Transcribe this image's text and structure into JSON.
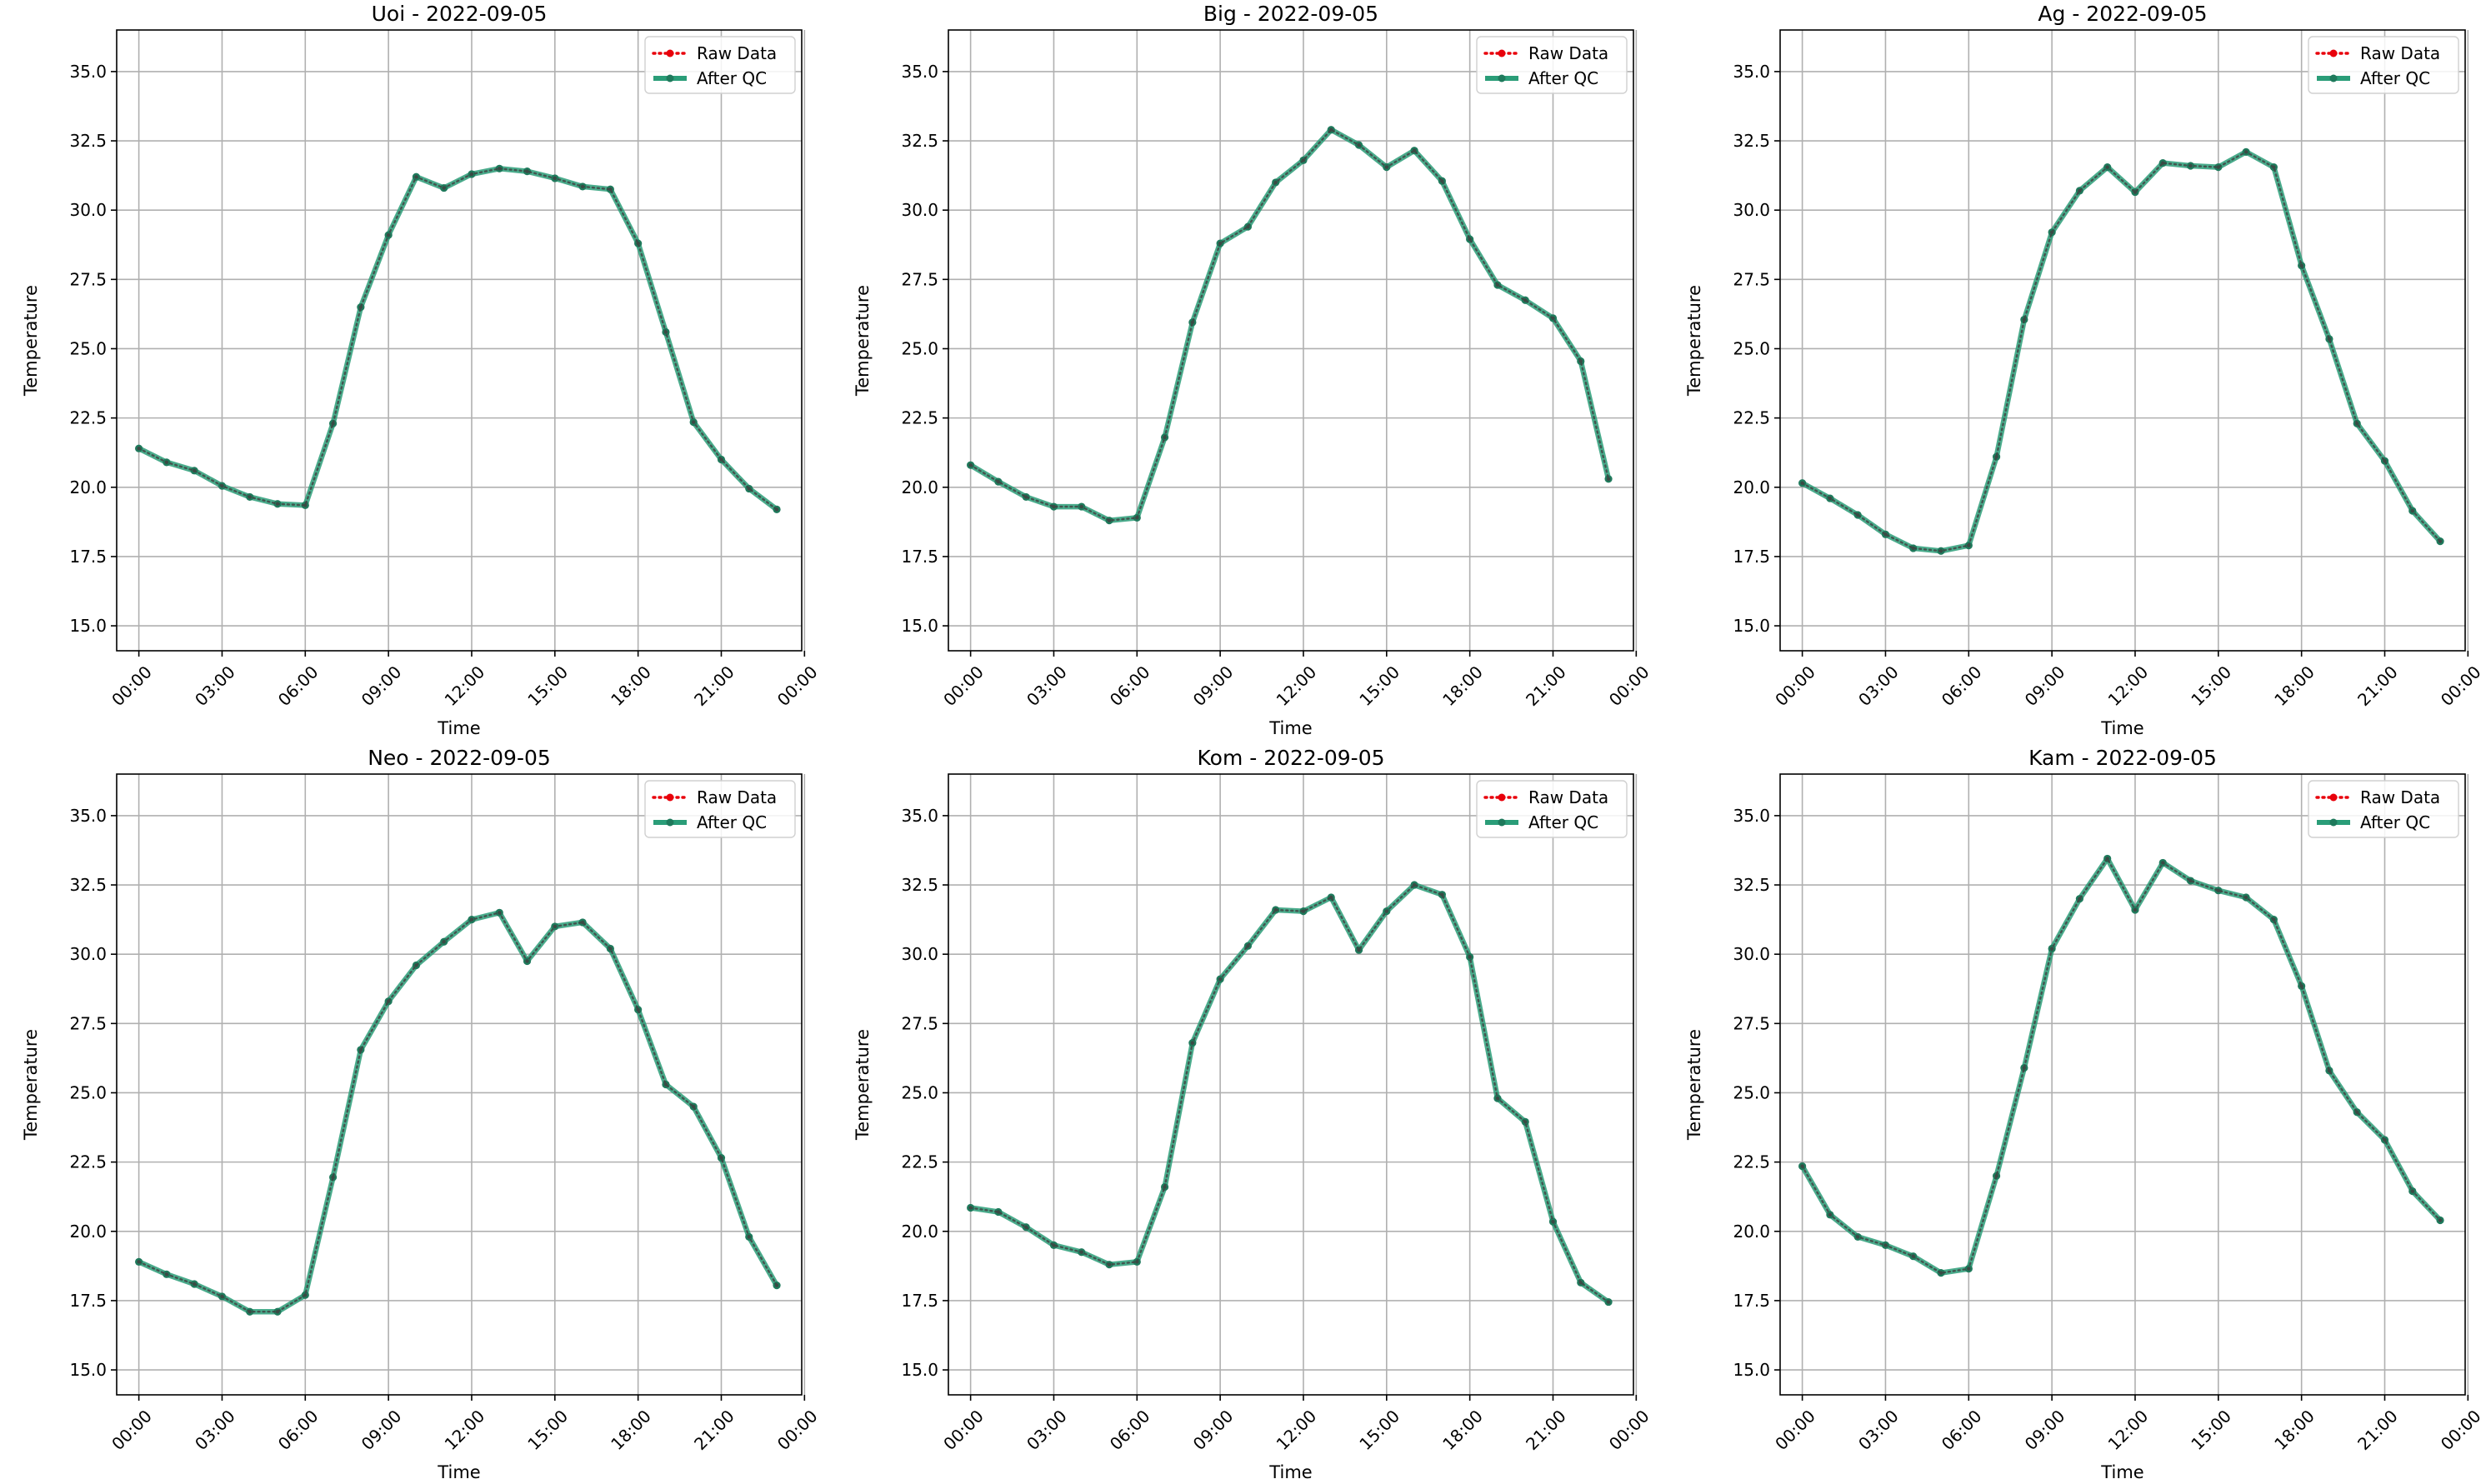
{
  "colors": {
    "raw": "#e8000b",
    "after_qc": "#2a9d78",
    "after_qc_marker": "#1f7a5c",
    "grid": "#b0b0b0",
    "axes": "#000000"
  },
  "chart_data": [
    {
      "type": "line",
      "title": "Uoi - 2022-09-05",
      "xlabel": "Time",
      "ylabel": "Temperature",
      "x_ticks": [
        "00:00",
        "03:00",
        "06:00",
        "09:00",
        "12:00",
        "15:00",
        "18:00",
        "21:00",
        "00:00"
      ],
      "y_ticks": [
        "15.0",
        "17.5",
        "20.0",
        "22.5",
        "25.0",
        "27.5",
        "30.0",
        "32.5",
        "35.0"
      ],
      "xlim_hours": [
        -0.8,
        23.9
      ],
      "ylim": [
        14.1,
        36.5
      ],
      "grid": true,
      "legend_position": "top-right",
      "x_hours": [
        0,
        1,
        2,
        3,
        4,
        5,
        6,
        7,
        8,
        9,
        10,
        11,
        12,
        13,
        14,
        15,
        16,
        17,
        18,
        19,
        20,
        21,
        22,
        23
      ],
      "series": [
        {
          "name": "Raw Data",
          "values": [
            21.4,
            20.9,
            20.6,
            20.05,
            19.65,
            19.4,
            19.35,
            22.3,
            26.5,
            29.1,
            31.2,
            30.8,
            31.3,
            31.5,
            31.4,
            31.15,
            30.85,
            30.75,
            28.8,
            25.6,
            22.35,
            21.0,
            19.95,
            19.2
          ]
        },
        {
          "name": "After QC",
          "values": [
            21.4,
            20.9,
            20.6,
            20.05,
            19.65,
            19.4,
            19.35,
            22.3,
            26.5,
            29.1,
            31.2,
            30.8,
            31.3,
            31.5,
            31.4,
            31.15,
            30.85,
            30.75,
            28.8,
            25.6,
            22.35,
            21.0,
            19.95,
            19.2
          ]
        }
      ]
    },
    {
      "type": "line",
      "title": "Big - 2022-09-05",
      "xlabel": "Time",
      "ylabel": "Temperature",
      "x_ticks": [
        "00:00",
        "03:00",
        "06:00",
        "09:00",
        "12:00",
        "15:00",
        "18:00",
        "21:00",
        "00:00"
      ],
      "y_ticks": [
        "15.0",
        "17.5",
        "20.0",
        "22.5",
        "25.0",
        "27.5",
        "30.0",
        "32.5",
        "35.0"
      ],
      "xlim_hours": [
        -0.8,
        23.9
      ],
      "ylim": [
        14.1,
        36.5
      ],
      "grid": true,
      "legend_position": "top-right",
      "x_hours": [
        0,
        1,
        2,
        3,
        4,
        5,
        6,
        7,
        8,
        9,
        10,
        11,
        12,
        13,
        14,
        15,
        16,
        17,
        18,
        19,
        20,
        21,
        22,
        23
      ],
      "series": [
        {
          "name": "Raw Data",
          "values": [
            20.8,
            20.2,
            19.65,
            19.3,
            19.3,
            18.8,
            18.9,
            21.8,
            25.95,
            28.8,
            29.4,
            31.0,
            31.8,
            32.9,
            32.35,
            31.55,
            32.15,
            31.05,
            28.95,
            27.3,
            26.75,
            26.1,
            24.55,
            20.3
          ]
        },
        {
          "name": "After QC",
          "values": [
            20.8,
            20.2,
            19.65,
            19.3,
            19.3,
            18.8,
            18.9,
            21.8,
            25.95,
            28.8,
            29.4,
            31.0,
            31.8,
            32.9,
            32.35,
            31.55,
            32.15,
            31.05,
            28.95,
            27.3,
            26.75,
            26.1,
            24.55,
            20.3
          ]
        }
      ]
    },
    {
      "type": "line",
      "title": "Ag - 2022-09-05",
      "xlabel": "Time",
      "ylabel": "Temperature",
      "x_ticks": [
        "00:00",
        "03:00",
        "06:00",
        "09:00",
        "12:00",
        "15:00",
        "18:00",
        "21:00",
        "00:00"
      ],
      "y_ticks": [
        "15.0",
        "17.5",
        "20.0",
        "22.5",
        "25.0",
        "27.5",
        "30.0",
        "32.5",
        "35.0"
      ],
      "xlim_hours": [
        -0.8,
        23.9
      ],
      "ylim": [
        14.1,
        36.5
      ],
      "grid": true,
      "legend_position": "top-right",
      "x_hours": [
        0,
        1,
        2,
        3,
        4,
        5,
        6,
        7,
        8,
        9,
        10,
        11,
        12,
        13,
        14,
        15,
        16,
        17,
        18,
        19,
        20,
        21,
        22,
        23
      ],
      "series": [
        {
          "name": "Raw Data",
          "values": [
            20.15,
            19.6,
            19.0,
            18.3,
            17.8,
            17.7,
            17.9,
            21.1,
            26.05,
            29.2,
            30.7,
            31.55,
            30.65,
            31.7,
            31.6,
            31.55,
            32.1,
            31.55,
            28.0,
            25.35,
            22.3,
            20.95,
            19.15,
            18.05
          ]
        },
        {
          "name": "After QC",
          "values": [
            20.15,
            19.6,
            19.0,
            18.3,
            17.8,
            17.7,
            17.9,
            21.1,
            26.05,
            29.2,
            30.7,
            31.55,
            30.65,
            31.7,
            31.6,
            31.55,
            32.1,
            31.55,
            28.0,
            25.35,
            22.3,
            20.95,
            19.15,
            18.05
          ]
        }
      ]
    },
    {
      "type": "line",
      "title": "Neo - 2022-09-05",
      "xlabel": "Time",
      "ylabel": "Temperature",
      "x_ticks": [
        "00:00",
        "03:00",
        "06:00",
        "09:00",
        "12:00",
        "15:00",
        "18:00",
        "21:00",
        "00:00"
      ],
      "y_ticks": [
        "15.0",
        "17.5",
        "20.0",
        "22.5",
        "25.0",
        "27.5",
        "30.0",
        "32.5",
        "35.0"
      ],
      "xlim_hours": [
        -0.8,
        23.9
      ],
      "ylim": [
        14.1,
        36.5
      ],
      "grid": true,
      "legend_position": "top-right",
      "x_hours": [
        0,
        1,
        2,
        3,
        4,
        5,
        6,
        7,
        8,
        9,
        10,
        11,
        12,
        13,
        14,
        15,
        16,
        17,
        18,
        19,
        20,
        21,
        22,
        23
      ],
      "series": [
        {
          "name": "Raw Data",
          "values": [
            18.9,
            18.45,
            18.1,
            17.65,
            17.1,
            17.1,
            17.7,
            21.95,
            26.55,
            28.3,
            29.6,
            30.45,
            31.25,
            31.5,
            29.75,
            31.0,
            31.15,
            30.2,
            28.0,
            25.3,
            24.5,
            22.65,
            19.8,
            18.05
          ]
        },
        {
          "name": "After QC",
          "values": [
            18.9,
            18.45,
            18.1,
            17.65,
            17.1,
            17.1,
            17.7,
            21.95,
            26.55,
            28.3,
            29.6,
            30.45,
            31.25,
            31.5,
            29.75,
            31.0,
            31.15,
            30.2,
            28.0,
            25.3,
            24.5,
            22.65,
            19.8,
            18.05
          ]
        }
      ]
    },
    {
      "type": "line",
      "title": "Kom - 2022-09-05",
      "xlabel": "Time",
      "ylabel": "Temperature",
      "x_ticks": [
        "00:00",
        "03:00",
        "06:00",
        "09:00",
        "12:00",
        "15:00",
        "18:00",
        "21:00",
        "00:00"
      ],
      "y_ticks": [
        "15.0",
        "17.5",
        "20.0",
        "22.5",
        "25.0",
        "27.5",
        "30.0",
        "32.5",
        "35.0"
      ],
      "xlim_hours": [
        -0.8,
        23.9
      ],
      "ylim": [
        14.1,
        36.5
      ],
      "grid": true,
      "legend_position": "top-right",
      "x_hours": [
        0,
        1,
        2,
        3,
        4,
        5,
        6,
        7,
        8,
        9,
        10,
        11,
        12,
        13,
        14,
        15,
        16,
        17,
        18,
        19,
        20,
        21,
        22,
        23
      ],
      "series": [
        {
          "name": "Raw Data",
          "values": [
            20.85,
            20.7,
            20.15,
            19.5,
            19.25,
            18.8,
            18.9,
            21.6,
            26.8,
            29.1,
            30.3,
            31.6,
            31.55,
            32.05,
            30.15,
            31.55,
            32.5,
            32.15,
            29.9,
            24.8,
            23.95,
            20.35,
            18.15,
            17.45
          ]
        },
        {
          "name": "After QC",
          "values": [
            20.85,
            20.7,
            20.15,
            19.5,
            19.25,
            18.8,
            18.9,
            21.6,
            26.8,
            29.1,
            30.3,
            31.6,
            31.55,
            32.05,
            30.15,
            31.55,
            32.5,
            32.15,
            29.9,
            24.8,
            23.95,
            20.35,
            18.15,
            17.45
          ]
        }
      ]
    },
    {
      "type": "line",
      "title": "Kam - 2022-09-05",
      "xlabel": "Time",
      "ylabel": "Temperature",
      "x_ticks": [
        "00:00",
        "03:00",
        "06:00",
        "09:00",
        "12:00",
        "15:00",
        "18:00",
        "21:00",
        "00:00"
      ],
      "y_ticks": [
        "15.0",
        "17.5",
        "20.0",
        "22.5",
        "25.0",
        "27.5",
        "30.0",
        "32.5",
        "35.0"
      ],
      "xlim_hours": [
        -0.8,
        23.9
      ],
      "ylim": [
        14.1,
        36.5
      ],
      "grid": true,
      "legend_position": "top-right",
      "x_hours": [
        0,
        1,
        2,
        3,
        4,
        5,
        6,
        7,
        8,
        9,
        10,
        11,
        12,
        13,
        14,
        15,
        16,
        17,
        18,
        19,
        20,
        21,
        22,
        23
      ],
      "series": [
        {
          "name": "Raw Data",
          "values": [
            22.35,
            20.6,
            19.8,
            19.5,
            19.1,
            18.5,
            18.65,
            22.0,
            25.9,
            30.2,
            32.0,
            33.45,
            31.6,
            33.3,
            32.65,
            32.3,
            32.05,
            31.25,
            28.85,
            25.8,
            24.3,
            23.3,
            21.45,
            20.4
          ]
        },
        {
          "name": "After QC",
          "values": [
            22.35,
            20.6,
            19.8,
            19.5,
            19.1,
            18.5,
            18.65,
            22.0,
            25.9,
            30.2,
            32.0,
            33.45,
            31.6,
            33.3,
            32.65,
            32.3,
            32.05,
            31.25,
            28.85,
            25.8,
            24.3,
            23.3,
            21.45,
            20.4
          ]
        }
      ]
    }
  ]
}
